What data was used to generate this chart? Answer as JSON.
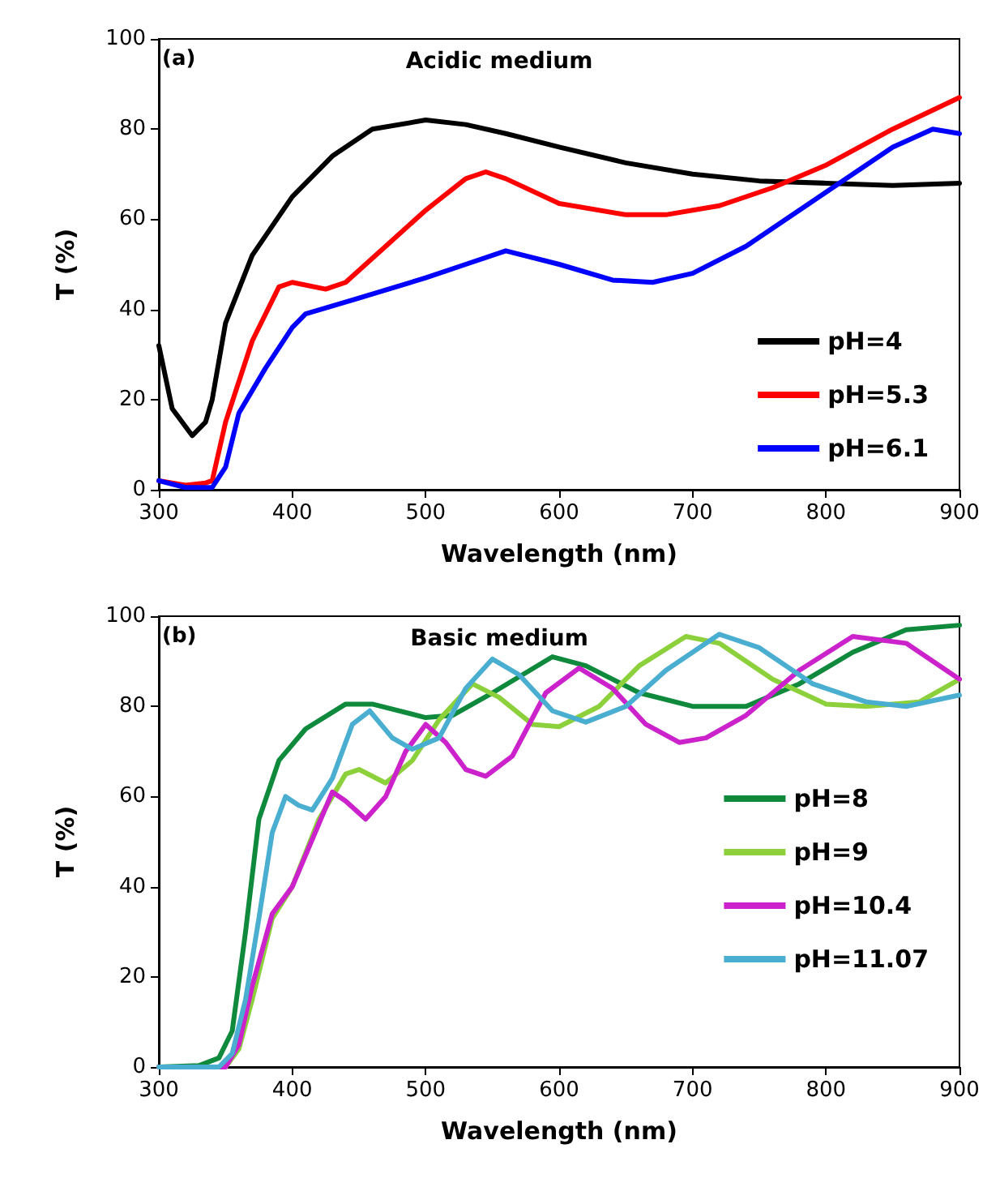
{
  "chart_data": [
    {
      "type": "line",
      "title": "Acidic medium",
      "annotations": [
        "(a)"
      ],
      "xlabel": "Wavelength (nm)",
      "ylabel": "T (%)",
      "xlim": [
        300,
        900
      ],
      "ylim": [
        0,
        100
      ],
      "xticks": [
        300,
        400,
        500,
        600,
        700,
        800,
        900
      ],
      "yticks": [
        0,
        20,
        40,
        60,
        80,
        100
      ],
      "grid": false,
      "legend": "bottom right",
      "marker": "none",
      "line_style": "solid",
      "series": [
        {
          "name": "pH=4",
          "color": "#000000",
          "x": [
            300,
            310,
            325,
            335,
            340,
            350,
            370,
            400,
            430,
            460,
            500,
            530,
            560,
            600,
            650,
            700,
            750,
            800,
            850,
            900
          ],
          "values": [
            32,
            18,
            12,
            15,
            20,
            37,
            52,
            65,
            74,
            80,
            82,
            81,
            79,
            76,
            72.5,
            70,
            68.5,
            68,
            67.5,
            68
          ]
        },
        {
          "name": "pH=5.3",
          "color": "#ff0000",
          "x": [
            300,
            320,
            335,
            340,
            350,
            370,
            390,
            400,
            425,
            440,
            470,
            500,
            530,
            545,
            560,
            600,
            650,
            680,
            720,
            760,
            800,
            850,
            900
          ],
          "values": [
            2,
            1,
            1.5,
            2,
            15,
            33,
            45,
            46,
            44.5,
            46,
            54,
            62,
            69,
            70.5,
            69,
            63.5,
            61,
            61,
            63,
            67,
            72,
            80,
            87
          ]
        },
        {
          "name": "pH=6.1",
          "color": "#0000ff",
          "x": [
            300,
            320,
            340,
            350,
            360,
            380,
            400,
            410,
            450,
            500,
            530,
            560,
            600,
            640,
            670,
            700,
            740,
            780,
            800,
            850,
            880,
            900
          ],
          "values": [
            2,
            0.5,
            0.5,
            5,
            17,
            27,
            36,
            39,
            42.5,
            47,
            50,
            53,
            50,
            46.5,
            46,
            48,
            54,
            62,
            66,
            76,
            80,
            79
          ]
        }
      ]
    },
    {
      "type": "line",
      "title": "Basic medium",
      "annotations": [
        "(b)"
      ],
      "xlabel": "Wavelength (nm)",
      "ylabel": "T (%)",
      "xlim": [
        300,
        900
      ],
      "ylim": [
        0,
        100
      ],
      "xticks": [
        300,
        400,
        500,
        600,
        700,
        800,
        900
      ],
      "yticks": [
        0,
        20,
        40,
        60,
        80,
        100
      ],
      "grid": false,
      "legend": "right",
      "marker": "none",
      "line_style": "solid",
      "series": [
        {
          "name": "pH=8",
          "color": "#0f8a3c",
          "x": [
            300,
            330,
            345,
            355,
            365,
            375,
            390,
            410,
            440,
            460,
            500,
            520,
            550,
            595,
            620,
            660,
            700,
            740,
            780,
            820,
            860,
            900
          ],
          "values": [
            0,
            0.3,
            2,
            8,
            30,
            55,
            68,
            75,
            80.5,
            80.5,
            77.5,
            78,
            83,
            91,
            89,
            83,
            80,
            80,
            85,
            92,
            97,
            98
          ]
        },
        {
          "name": "pH=9",
          "color": "#8cd13c",
          "x": [
            300,
            350,
            360,
            370,
            385,
            400,
            420,
            440,
            450,
            470,
            490,
            510,
            535,
            555,
            580,
            600,
            630,
            660,
            695,
            720,
            760,
            800,
            830,
            870,
            900
          ],
          "values": [
            0,
            0,
            4,
            15,
            33,
            40,
            55,
            65,
            66,
            63,
            68,
            77,
            85,
            82,
            76,
            75.5,
            80,
            89,
            95.5,
            94,
            86,
            80.5,
            80,
            81,
            86
          ]
        },
        {
          "name": "pH=10.4",
          "color": "#cc22cc",
          "x": [
            300,
            350,
            360,
            370,
            385,
            400,
            420,
            430,
            440,
            455,
            470,
            485,
            500,
            515,
            530,
            545,
            565,
            590,
            615,
            640,
            665,
            690,
            710,
            740,
            780,
            820,
            860,
            900
          ],
          "values": [
            0,
            0,
            5,
            18,
            34,
            40,
            54,
            61,
            59,
            55,
            60,
            70,
            76,
            72,
            66,
            64.5,
            69,
            83,
            88.5,
            84,
            76,
            72,
            73,
            78,
            88,
            95.5,
            94,
            86
          ]
        },
        {
          "name": "pH=11.07",
          "color": "#4aaed0",
          "x": [
            300,
            345,
            355,
            365,
            375,
            385,
            395,
            405,
            415,
            430,
            445,
            458,
            475,
            490,
            510,
            530,
            550,
            570,
            595,
            620,
            650,
            680,
            720,
            750,
            790,
            830,
            860,
            900
          ],
          "values": [
            0,
            0,
            3,
            15,
            33,
            52,
            60,
            58,
            57,
            64,
            76,
            79,
            73,
            70.5,
            73,
            84,
            90.5,
            87,
            79,
            76.5,
            80,
            88,
            96,
            93,
            85,
            81,
            80,
            82.5
          ]
        }
      ]
    }
  ]
}
